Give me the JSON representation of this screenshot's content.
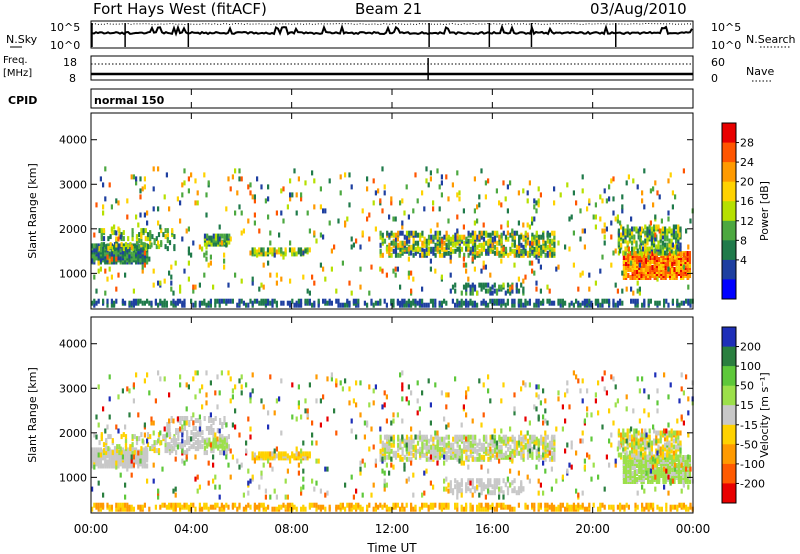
{
  "header": {
    "station": "Fort Hays West (fitACF)",
    "beam": "Beam 21",
    "date": "03/Aug/2010"
  },
  "panels": {
    "nsky": {
      "left_label": "N.Sky",
      "left_ticks": [
        "10^5",
        "10^0"
      ],
      "right_label": "N.Search",
      "right_ticks": [
        "10^5",
        "10^0"
      ]
    },
    "freq": {
      "left_label": "Freq.",
      "left_unit": "[MHz]",
      "left_ticks": [
        "18",
        "8"
      ],
      "right_label": "Nave",
      "right_ticks": [
        "60",
        "0"
      ]
    },
    "cpid": {
      "label": "CPID",
      "text": "normal 150"
    }
  },
  "colorbars": {
    "power": {
      "label": "Power [dB]",
      "ticks": [
        "28",
        "24",
        "20",
        "16",
        "12",
        "8",
        "4"
      ],
      "colors": [
        "#e80000",
        "#ff5500",
        "#ff9a00",
        "#ffd200",
        "#b6e000",
        "#4ca840",
        "#1f7a4a",
        "#1e3fa0",
        "#0000ff"
      ]
    },
    "velocity": {
      "label": "Velocity [m s⁻¹]",
      "ticks": [
        "200",
        "100",
        "50",
        "15",
        "-15",
        "-50",
        "-100",
        "-200"
      ],
      "colors": [
        "#1e2fb8",
        "#2a7f3f",
        "#5ec83a",
        "#9ce04a",
        "#c8c8c8",
        "#ffd200",
        "#ff9a00",
        "#ff5a00",
        "#e80000"
      ]
    }
  },
  "chart_data": [
    {
      "type": "heatmap",
      "name": "power",
      "ylabel": "Slant Range [km]",
      "xlabel": "Time UT",
      "x_ticks": [
        "00:00",
        "04:00",
        "08:00",
        "12:00",
        "16:00",
        "20:00",
        "00:00"
      ],
      "x_range_hours": [
        0,
        24
      ],
      "y_ticks": [
        1000,
        2000,
        3000,
        4000
      ],
      "ylim": [
        200,
        4600
      ],
      "clim": [
        0,
        32
      ],
      "regions": [
        {
          "t": [
            0.0,
            2.2
          ],
          "range": [
            1200,
            1600
          ],
          "value": [
            4,
            14
          ],
          "density": 0.85
        },
        {
          "t": [
            0.3,
            3.3
          ],
          "range": [
            1500,
            1950
          ],
          "value": [
            6,
            20
          ],
          "density": 0.25
        },
        {
          "t": [
            4.5,
            5.5
          ],
          "range": [
            1600,
            1800
          ],
          "value": [
            6,
            18
          ],
          "density": 0.7
        },
        {
          "t": [
            6.4,
            8.7
          ],
          "range": [
            1380,
            1500
          ],
          "value": [
            8,
            22
          ],
          "density": 0.8
        },
        {
          "t": [
            11.5,
            18.5
          ],
          "range": [
            1350,
            1850
          ],
          "value": [
            4,
            24
          ],
          "density": 0.5
        },
        {
          "t": [
            14.3,
            17.2
          ],
          "range": [
            500,
            700
          ],
          "value": [
            4,
            12
          ],
          "density": 0.4
        },
        {
          "t": [
            21.2,
            23.9
          ],
          "range": [
            850,
            1400
          ],
          "value": [
            18,
            30
          ],
          "density": 0.85
        },
        {
          "t": [
            21.0,
            23.5
          ],
          "range": [
            1400,
            2000
          ],
          "value": [
            6,
            20
          ],
          "density": 0.5
        },
        {
          "t": [
            0.0,
            24.0
          ],
          "range": [
            230,
            330
          ],
          "value": [
            4,
            10
          ],
          "density": 0.45
        },
        {
          "t": [
            0.0,
            24.0
          ],
          "range": [
            500,
            3300
          ],
          "value": [
            4,
            28
          ],
          "density": 0.035
        }
      ]
    },
    {
      "type": "heatmap",
      "name": "velocity",
      "ylabel": "Slant Range [km]",
      "xlabel": "Time UT",
      "x_ticks": [
        "00:00",
        "04:00",
        "08:00",
        "12:00",
        "16:00",
        "20:00",
        "00:00"
      ],
      "x_range_hours": [
        0,
        24
      ],
      "y_ticks": [
        1000,
        2000,
        3000,
        4000
      ],
      "ylim": [
        200,
        4600
      ],
      "clim": [
        -250,
        250
      ],
      "regions": [
        {
          "t": [
            0.0,
            2.2
          ],
          "range": [
            1200,
            1600
          ],
          "value": [
            -30,
            20
          ],
          "density": 0.85
        },
        {
          "t": [
            0.3,
            3.3
          ],
          "range": [
            1500,
            1950
          ],
          "value": [
            -60,
            60
          ],
          "density": 0.25
        },
        {
          "t": [
            3.0,
            5.5
          ],
          "range": [
            1500,
            2300
          ],
          "value": [
            -10,
            10
          ],
          "density": 0.3
        },
        {
          "t": [
            4.5,
            5.5
          ],
          "range": [
            1600,
            1800
          ],
          "value": [
            20,
            80
          ],
          "density": 0.7
        },
        {
          "t": [
            6.4,
            8.7
          ],
          "range": [
            1380,
            1500
          ],
          "value": [
            -90,
            -20
          ],
          "density": 0.8
        },
        {
          "t": [
            11.5,
            18.5
          ],
          "range": [
            1350,
            1850
          ],
          "value": [
            -40,
            60
          ],
          "density": 0.5
        },
        {
          "t": [
            14.3,
            17.2
          ],
          "range": [
            600,
            900
          ],
          "value": [
            -10,
            10
          ],
          "density": 0.4
        },
        {
          "t": [
            21.2,
            23.9
          ],
          "range": [
            850,
            1400
          ],
          "value": [
            20,
            60
          ],
          "density": 0.85
        },
        {
          "t": [
            21.0,
            23.5
          ],
          "range": [
            1400,
            2000
          ],
          "value": [
            -100,
            100
          ],
          "density": 0.5
        },
        {
          "t": [
            0.0,
            24.0
          ],
          "range": [
            230,
            330
          ],
          "value": [
            -120,
            -40
          ],
          "density": 0.45
        },
        {
          "t": [
            0.0,
            24.0
          ],
          "range": [
            500,
            3300
          ],
          "value": [
            -220,
            220
          ],
          "density": 0.035
        }
      ]
    }
  ]
}
